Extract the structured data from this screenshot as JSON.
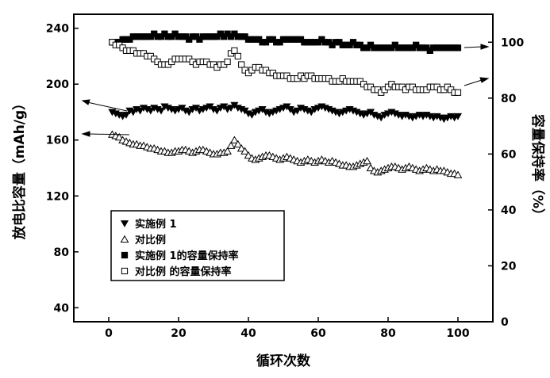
{
  "chart_data": {
    "type": "scatter",
    "title": "",
    "xlabel": "循环次数",
    "ylabel": "放电比容量（mAh/g）",
    "y2label": "容量保持率（%）",
    "xlim": [
      -10,
      110
    ],
    "ylim": [
      30,
      250
    ],
    "y2lim": [
      0,
      110
    ],
    "xticks": [
      "0",
      "20",
      "40",
      "60",
      "80",
      "100"
    ],
    "yticks": [
      "40",
      "80",
      "120",
      "160",
      "200",
      "240"
    ],
    "y2ticks": [
      "0",
      "20",
      "40",
      "60",
      "80",
      "100"
    ],
    "grid": false,
    "legend_position": "lower-left",
    "series": [
      {
        "name": "实施例 1",
        "marker": "triangle-down-filled",
        "axis": "left",
        "x": [
          1,
          2,
          3,
          4,
          5,
          6,
          7,
          8,
          9,
          10,
          11,
          12,
          13,
          14,
          15,
          16,
          17,
          18,
          19,
          20,
          21,
          22,
          23,
          24,
          25,
          26,
          27,
          28,
          29,
          30,
          31,
          32,
          33,
          34,
          35,
          36,
          37,
          38,
          39,
          40,
          41,
          42,
          43,
          44,
          45,
          46,
          47,
          48,
          49,
          50,
          51,
          52,
          53,
          54,
          55,
          56,
          57,
          58,
          59,
          60,
          61,
          62,
          63,
          64,
          65,
          66,
          67,
          68,
          69,
          70,
          71,
          72,
          73,
          74,
          75,
          76,
          77,
          78,
          79,
          80,
          81,
          82,
          83,
          84,
          85,
          86,
          87,
          88,
          89,
          90,
          91,
          92,
          93,
          94,
          95,
          96,
          97,
          98,
          99,
          100
        ],
        "y": [
          180,
          179,
          178,
          177,
          178,
          181,
          180,
          182,
          181,
          183,
          182,
          181,
          183,
          182,
          181,
          184,
          183,
          182,
          181,
          182,
          183,
          181,
          180,
          182,
          183,
          181,
          182,
          183,
          184,
          182,
          181,
          183,
          184,
          182,
          183,
          185,
          183,
          182,
          181,
          179,
          178,
          180,
          181,
          182,
          180,
          179,
          180,
          181,
          182,
          183,
          184,
          182,
          180,
          181,
          183,
          182,
          181,
          180,
          182,
          183,
          184,
          183,
          182,
          181,
          180,
          179,
          180,
          181,
          182,
          181,
          180,
          179,
          178,
          179,
          180,
          178,
          177,
          176,
          178,
          179,
          180,
          179,
          178,
          177,
          178,
          177,
          176,
          177,
          178,
          177,
          178,
          177,
          176,
          177,
          176,
          175,
          176,
          177,
          176,
          177
        ]
      },
      {
        "name": "对比例",
        "marker": "triangle-up-open",
        "axis": "left",
        "x": [
          1,
          2,
          3,
          4,
          5,
          6,
          7,
          8,
          9,
          10,
          11,
          12,
          13,
          14,
          15,
          16,
          17,
          18,
          19,
          20,
          21,
          22,
          23,
          24,
          25,
          26,
          27,
          28,
          29,
          30,
          31,
          32,
          33,
          34,
          35,
          36,
          37,
          38,
          39,
          40,
          41,
          42,
          43,
          44,
          45,
          46,
          47,
          48,
          49,
          50,
          51,
          52,
          53,
          54,
          55,
          56,
          57,
          58,
          59,
          60,
          61,
          62,
          63,
          64,
          65,
          66,
          67,
          68,
          69,
          70,
          71,
          72,
          73,
          74,
          75,
          76,
          77,
          78,
          79,
          80,
          81,
          82,
          83,
          84,
          85,
          86,
          87,
          88,
          89,
          90,
          91,
          92,
          93,
          94,
          95,
          96,
          97,
          98,
          99,
          100
        ],
        "y": [
          164,
          163,
          162,
          160,
          159,
          158,
          157,
          157,
          156,
          156,
          155,
          154,
          154,
          153,
          152,
          152,
          151,
          151,
          152,
          152,
          153,
          153,
          152,
          151,
          152,
          153,
          153,
          152,
          151,
          150,
          150,
          151,
          151,
          152,
          156,
          160,
          157,
          154,
          152,
          149,
          147,
          146,
          147,
          148,
          149,
          149,
          148,
          147,
          146,
          147,
          148,
          147,
          146,
          145,
          144,
          145,
          146,
          145,
          144,
          145,
          146,
          145,
          144,
          145,
          144,
          143,
          142,
          142,
          141,
          141,
          142,
          143,
          144,
          145,
          140,
          138,
          137,
          138,
          139,
          140,
          141,
          141,
          140,
          139,
          140,
          141,
          140,
          139,
          138,
          139,
          140,
          139,
          138,
          139,
          138,
          138,
          137,
          136,
          136,
          135
        ]
      },
      {
        "name": "实施例 1的容量保持率",
        "marker": "square-filled",
        "axis": "right",
        "x": [
          1,
          2,
          3,
          4,
          5,
          6,
          7,
          8,
          9,
          10,
          11,
          12,
          13,
          14,
          15,
          16,
          17,
          18,
          19,
          20,
          21,
          22,
          23,
          24,
          25,
          26,
          27,
          28,
          29,
          30,
          31,
          32,
          33,
          34,
          35,
          36,
          37,
          38,
          39,
          40,
          41,
          42,
          43,
          44,
          45,
          46,
          47,
          48,
          49,
          50,
          51,
          52,
          53,
          54,
          55,
          56,
          57,
          58,
          59,
          60,
          61,
          62,
          63,
          64,
          65,
          66,
          67,
          68,
          69,
          70,
          71,
          72,
          73,
          74,
          75,
          76,
          77,
          78,
          79,
          80,
          81,
          82,
          83,
          84,
          85,
          86,
          87,
          88,
          89,
          90,
          91,
          92,
          93,
          94,
          95,
          96,
          97,
          98,
          99,
          100
        ],
        "y": [
          100,
          100,
          100,
          101,
          101,
          101,
          102,
          102,
          102,
          102,
          102,
          102,
          103,
          102,
          102,
          103,
          102,
          102,
          103,
          102,
          102,
          102,
          101,
          102,
          102,
          101,
          102,
          102,
          102,
          102,
          102,
          103,
          102,
          103,
          102,
          103,
          102,
          102,
          102,
          101,
          101,
          101,
          101,
          100,
          100,
          101,
          101,
          100,
          100,
          101,
          101,
          101,
          101,
          101,
          101,
          100,
          100,
          100,
          100,
          100,
          101,
          100,
          100,
          99,
          100,
          100,
          99,
          99,
          99,
          100,
          99,
          99,
          98,
          98,
          99,
          98,
          98,
          98,
          98,
          98,
          98,
          99,
          98,
          98,
          98,
          98,
          98,
          99,
          98,
          98,
          98,
          97,
          98,
          98,
          98,
          98,
          98,
          98,
          98,
          98
        ]
      },
      {
        "name": "对比例 的容量保持率",
        "marker": "square-open",
        "axis": "right",
        "x": [
          1,
          2,
          3,
          4,
          5,
          6,
          7,
          8,
          9,
          10,
          11,
          12,
          13,
          14,
          15,
          16,
          17,
          18,
          19,
          20,
          21,
          22,
          23,
          24,
          25,
          26,
          27,
          28,
          29,
          30,
          31,
          32,
          33,
          34,
          35,
          36,
          37,
          38,
          39,
          40,
          41,
          42,
          43,
          44,
          45,
          46,
          47,
          48,
          49,
          50,
          51,
          52,
          53,
          54,
          55,
          56,
          57,
          58,
          59,
          60,
          61,
          62,
          63,
          64,
          65,
          66,
          67,
          68,
          69,
          70,
          71,
          72,
          73,
          74,
          75,
          76,
          77,
          78,
          79,
          80,
          81,
          82,
          83,
          84,
          85,
          86,
          87,
          88,
          89,
          90,
          91,
          92,
          93,
          94,
          95,
          96,
          97,
          98,
          99,
          100
        ],
        "y": [
          100,
          99,
          99,
          98,
          97,
          97,
          97,
          96,
          96,
          96,
          95,
          95,
          94,
          93,
          92,
          92,
          92,
          93,
          94,
          94,
          94,
          94,
          94,
          93,
          92,
          93,
          93,
          93,
          92,
          92,
          91,
          92,
          92,
          93,
          96,
          97,
          95,
          92,
          90,
          89,
          90,
          91,
          91,
          90,
          90,
          89,
          89,
          88,
          88,
          88,
          88,
          87,
          87,
          87,
          88,
          87,
          88,
          88,
          87,
          87,
          87,
          87,
          87,
          86,
          86,
          86,
          87,
          86,
          86,
          86,
          86,
          86,
          85,
          84,
          84,
          83,
          83,
          82,
          83,
          84,
          85,
          84,
          84,
          84,
          83,
          84,
          84,
          83,
          83,
          83,
          83,
          84,
          84,
          84,
          83,
          83,
          84,
          83,
          82,
          82
        ]
      }
    ]
  }
}
